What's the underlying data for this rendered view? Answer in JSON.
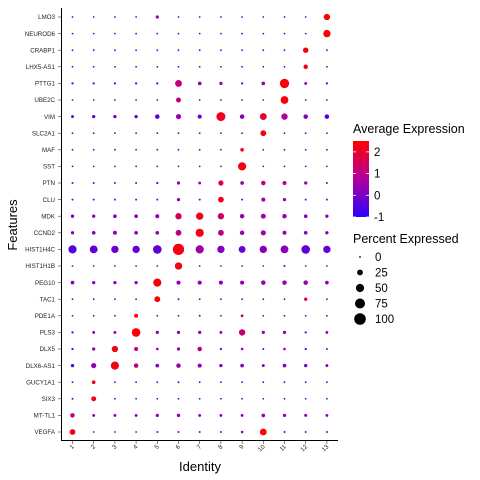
{
  "chart_data": {
    "type": "dot",
    "xlabel": "Identity",
    "ylabel": "Features",
    "identities": [
      "1",
      "2",
      "3",
      "4",
      "5",
      "6",
      "7",
      "8",
      "9",
      "10",
      "11",
      "12",
      "13"
    ],
    "features": [
      "VEGFA",
      "MT-TL1",
      "SIX3",
      "GUCY1A1",
      "DLX6-AS1",
      "DLX5",
      "PLS3",
      "PDE1A",
      "TAC1",
      "PEG10",
      "HIST1H1B",
      "HIST1H4C",
      "CCND2",
      "MDK",
      "CLU",
      "PTN",
      "SST",
      "MAF",
      "SLC2A1",
      "VIM",
      "UBE2C",
      "PTTG1",
      "LHX5-AS1",
      "CRABP1",
      "NEUROD6",
      "LMO3"
    ],
    "legend": {
      "color_title": "Average Expression",
      "color_ticks": [
        "2",
        "1",
        "0",
        "-1"
      ],
      "color_range": [
        -1,
        2.5
      ],
      "colors": {
        "low": "#2b00ff",
        "mid": "#b0009c",
        "high": "#ff0000"
      },
      "size_title": "Percent Expressed",
      "size_ticks": [
        "0",
        "25",
        "50",
        "75",
        "100"
      ],
      "size_range": [
        0,
        100
      ]
    },
    "points": [
      {
        "feature": "VEGFA",
        "avg": [
          2.3,
          -0.2,
          -0.1,
          -0.2,
          0,
          0.2,
          0,
          -0.2,
          0.4,
          2.5,
          -0.1,
          0.1,
          0
        ],
        "pct": [
          25,
          2,
          2,
          2,
          3,
          3,
          3,
          3,
          5,
          35,
          3,
          3,
          3
        ]
      },
      {
        "feature": "MT-TL1",
        "avg": [
          1.2,
          0.2,
          0.2,
          0.2,
          0.3,
          0.5,
          0.2,
          0.2,
          0.2,
          0.4,
          0.3,
          0.3,
          0.2
        ],
        "pct": [
          15,
          6,
          6,
          6,
          8,
          9,
          6,
          6,
          6,
          10,
          8,
          7,
          6
        ]
      },
      {
        "feature": "SIX3",
        "avg": [
          0,
          2.2,
          0,
          0,
          0,
          0,
          0,
          0,
          0,
          0,
          0,
          0,
          0
        ],
        "pct": [
          3,
          18,
          2,
          2,
          2,
          2,
          2,
          2,
          2,
          2,
          2,
          2,
          2
        ]
      },
      {
        "feature": "GUCY1A1",
        "avg": [
          -0.2,
          2.2,
          -0.2,
          -0.2,
          -0.2,
          0,
          -0.2,
          -0.2,
          -0.2,
          -0.2,
          -0.2,
          -0.2,
          -0.2
        ],
        "pct": [
          2,
          10,
          2,
          2,
          2,
          3,
          2,
          2,
          2,
          2,
          2,
          2,
          2
        ]
      },
      {
        "feature": "DLX6-AS1",
        "avg": [
          -0.5,
          0.3,
          2.3,
          1.0,
          0.2,
          0.5,
          0.3,
          0.1,
          0.2,
          -0.2,
          0.2,
          -0.3,
          0
        ],
        "pct": [
          8,
          20,
          50,
          15,
          10,
          15,
          12,
          8,
          10,
          6,
          10,
          8,
          6
        ]
      },
      {
        "feature": "DLX5",
        "avg": [
          -0.2,
          0.5,
          2.2,
          1.2,
          0.2,
          0.5,
          1.0,
          0.1,
          0.2,
          -0.2,
          0.2,
          -0.2,
          0
        ],
        "pct": [
          4,
          8,
          30,
          12,
          5,
          8,
          15,
          4,
          5,
          3,
          5,
          4,
          3
        ]
      },
      {
        "feature": "PLS3",
        "avg": [
          0,
          0,
          0,
          2.4,
          0.2,
          0.2,
          0.4,
          0.2,
          1.2,
          0.5,
          0.2,
          0,
          0.2
        ],
        "pct": [
          4,
          6,
          6,
          55,
          8,
          8,
          8,
          6,
          30,
          8,
          8,
          4,
          6
        ]
      },
      {
        "feature": "PDE1A",
        "avg": [
          0,
          0,
          0,
          2.4,
          0,
          0,
          0.2,
          0,
          1.2,
          0,
          0,
          0,
          0
        ],
        "pct": [
          2,
          2,
          2,
          12,
          2,
          2,
          3,
          2,
          6,
          2,
          2,
          2,
          2
        ]
      },
      {
        "feature": "TAC1",
        "avg": [
          -0.2,
          -0.2,
          -0.2,
          -0.2,
          2.4,
          0,
          -0.2,
          -0.2,
          -0.2,
          -0.2,
          -0.2,
          2.0,
          -0.2
        ],
        "pct": [
          2,
          2,
          2,
          2,
          25,
          3,
          2,
          2,
          2,
          2,
          2,
          8,
          2
        ]
      },
      {
        "feature": "PEG10",
        "avg": [
          0.2,
          0.2,
          0.2,
          0.2,
          2.4,
          0.3,
          0.3,
          0.3,
          0.3,
          0.5,
          0.5,
          0.5,
          0.3
        ],
        "pct": [
          10,
          8,
          8,
          8,
          50,
          12,
          12,
          12,
          12,
          15,
          15,
          15,
          10
        ]
      },
      {
        "feature": "HIST1H1B",
        "avg": [
          0,
          0,
          0,
          0,
          0,
          2.3,
          0,
          0,
          0,
          0,
          0,
          0,
          0
        ],
        "pct": [
          2,
          2,
          2,
          2,
          2,
          40,
          2,
          2,
          2,
          2,
          3,
          2,
          2
        ]
      },
      {
        "feature": "HIST1H4C",
        "avg": [
          -0.5,
          -0.3,
          -0.2,
          -0.3,
          -0.3,
          2.3,
          0.5,
          0.2,
          -0.2,
          0.2,
          0.2,
          -0.3,
          -0.3
        ],
        "pct": [
          50,
          45,
          40,
          40,
          55,
          95,
          50,
          40,
          35,
          40,
          45,
          55,
          40
        ]
      },
      {
        "feature": "CCND2",
        "avg": [
          0,
          0.2,
          0.4,
          0.2,
          0.3,
          1.0,
          2.3,
          1.0,
          0.5,
          0.6,
          0.4,
          0.2,
          0.2
        ],
        "pct": [
          8,
          10,
          12,
          10,
          10,
          25,
          50,
          25,
          15,
          20,
          12,
          10,
          8
        ]
      },
      {
        "feature": "MDK",
        "avg": [
          0,
          0.2,
          0.3,
          0.3,
          0.4,
          1.5,
          2.2,
          1.3,
          0.5,
          0.6,
          0.5,
          0.3,
          0.2
        ],
        "pct": [
          8,
          8,
          10,
          10,
          12,
          30,
          40,
          30,
          15,
          18,
          15,
          10,
          8
        ]
      },
      {
        "feature": "CLU",
        "avg": [
          0,
          0,
          0,
          0,
          0,
          0.3,
          0,
          2.2,
          0,
          0.5,
          0.3,
          0,
          0
        ],
        "pct": [
          3,
          3,
          3,
          3,
          3,
          8,
          3,
          25,
          3,
          12,
          8,
          3,
          3
        ]
      },
      {
        "feature": "PTN",
        "avg": [
          0,
          0,
          0,
          0,
          0,
          0.3,
          0.2,
          1.8,
          0.5,
          1.2,
          0.8,
          0.4,
          0
        ],
        "pct": [
          3,
          3,
          3,
          3,
          4,
          8,
          6,
          20,
          10,
          15,
          12,
          8,
          3
        ]
      },
      {
        "feature": "SST",
        "avg": [
          -0.2,
          -0.2,
          -0.2,
          -0.2,
          -0.2,
          -0.2,
          -0.2,
          -0.2,
          2.3,
          -0.2,
          -0.2,
          -0.2,
          -0.2
        ],
        "pct": [
          2,
          2,
          2,
          2,
          2,
          2,
          2,
          2,
          50,
          2,
          2,
          2,
          2
        ]
      },
      {
        "feature": "MAF",
        "avg": [
          -0.2,
          -0.2,
          -0.2,
          -0.2,
          -0.2,
          -0.2,
          -0.2,
          -0.2,
          2.3,
          -0.2,
          -0.2,
          -0.2,
          -0.2
        ],
        "pct": [
          2,
          2,
          2,
          2,
          2,
          2,
          2,
          2,
          10,
          2,
          2,
          2,
          2
        ]
      },
      {
        "feature": "SLC2A1",
        "avg": [
          0,
          0,
          0,
          0,
          0,
          0,
          0,
          0,
          0,
          2.3,
          0,
          0,
          0
        ],
        "pct": [
          2,
          2,
          2,
          2,
          2,
          2,
          2,
          2,
          2,
          25,
          2,
          2,
          2
        ]
      },
      {
        "feature": "VIM",
        "avg": [
          -0.5,
          -0.3,
          -0.2,
          -0.3,
          -0.5,
          0.5,
          -0.3,
          2.2,
          0.2,
          2.0,
          0.8,
          0.2,
          -0.5
        ],
        "pct": [
          6,
          8,
          8,
          8,
          15,
          20,
          12,
          60,
          15,
          35,
          30,
          15,
          15
        ]
      },
      {
        "feature": "UBE2C",
        "avg": [
          0,
          0,
          0,
          0,
          0,
          1.0,
          0,
          0,
          0,
          0,
          2.4,
          0,
          0
        ],
        "pct": [
          2,
          2,
          2,
          2,
          2,
          18,
          2,
          2,
          2,
          2,
          45,
          2,
          2
        ]
      },
      {
        "feature": "PTTG1",
        "avg": [
          0,
          0,
          0,
          0,
          0,
          1.2,
          0.3,
          0.3,
          0,
          0.4,
          2.4,
          0.2,
          0
        ],
        "pct": [
          4,
          4,
          4,
          4,
          4,
          35,
          10,
          8,
          4,
          10,
          65,
          6,
          4
        ]
      },
      {
        "feature": "LHX5-AS1",
        "avg": [
          -0.2,
          -0.2,
          -0.2,
          -0.2,
          -0.2,
          -0.2,
          -0.2,
          -0.2,
          -0.2,
          -0.2,
          -0.2,
          2.3,
          -0.2
        ],
        "pct": [
          2,
          2,
          2,
          2,
          2,
          2,
          2,
          2,
          2,
          2,
          2,
          15,
          2
        ]
      },
      {
        "feature": "CRABP1",
        "avg": [
          -0.2,
          -0.2,
          -0.2,
          -0.2,
          -0.2,
          -0.2,
          -0.2,
          -0.2,
          -0.2,
          -0.2,
          -0.2,
          2.3,
          -0.2
        ],
        "pct": [
          2,
          2,
          2,
          2,
          2,
          2,
          2,
          2,
          2,
          2,
          2,
          22,
          2
        ]
      },
      {
        "feature": "NEUROD6",
        "avg": [
          -0.2,
          -0.2,
          -0.2,
          -0.2,
          -0.2,
          -0.2,
          -0.2,
          -0.2,
          -0.2,
          -0.2,
          -0.2,
          -0.2,
          2.4
        ],
        "pct": [
          2,
          2,
          2,
          2,
          2,
          2,
          2,
          2,
          2,
          2,
          2,
          2,
          40
        ]
      },
      {
        "feature": "LMO3",
        "avg": [
          -0.2,
          -0.2,
          -0.2,
          -0.2,
          0.5,
          -0.2,
          -0.2,
          -0.2,
          -0.2,
          -0.2,
          -0.2,
          -0.2,
          2.4
        ],
        "pct": [
          2,
          2,
          2,
          2,
          8,
          2,
          2,
          2,
          2,
          2,
          2,
          2,
          30
        ]
      }
    ]
  }
}
